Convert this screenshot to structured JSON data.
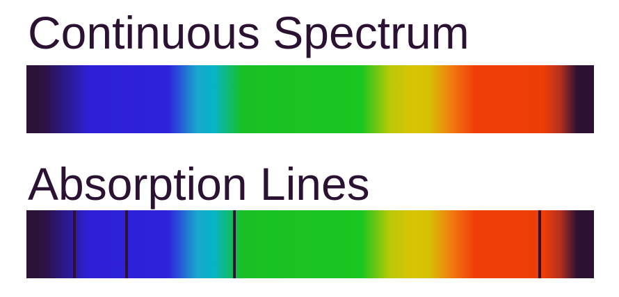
{
  "titles": {
    "continuous": "Continuous Spectrum",
    "absorption": "Absorption Lines"
  },
  "colors": {
    "text": "#2b1233",
    "absorption_line": "#2b1233",
    "violet": "#2e22dc",
    "cyan": "#07b4c8",
    "green": "#1ac620",
    "yellow": "#d9c405",
    "red": "#f03e08"
  },
  "absorption_lines": [
    {
      "position_fraction": 0.085,
      "color": "violet"
    },
    {
      "position_fraction": 0.176,
      "color": "blue"
    },
    {
      "position_fraction": 0.367,
      "color": "cyan-green"
    },
    {
      "position_fraction": 0.904,
      "color": "red"
    }
  ]
}
